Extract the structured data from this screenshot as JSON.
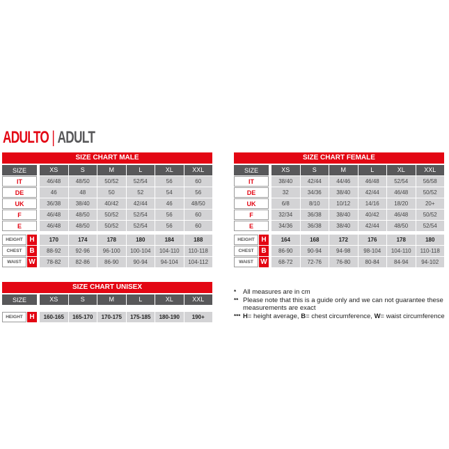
{
  "heading": {
    "main": "ADULTO",
    "divider": "|",
    "sub": "ADULT"
  },
  "sizes": [
    "XS",
    "S",
    "M",
    "L",
    "XL",
    "XXL"
  ],
  "size_label": "SIZE",
  "male": {
    "title": "SIZE CHART MALE",
    "conversions": [
      {
        "label": "IT",
        "values": [
          "46/48",
          "48/50",
          "50/52",
          "52/54",
          "56",
          "60"
        ]
      },
      {
        "label": "DE",
        "values": [
          "46",
          "48",
          "50",
          "52",
          "54",
          "56"
        ]
      },
      {
        "label": "UK",
        "values": [
          "36/38",
          "38/40",
          "40/42",
          "42/44",
          "46",
          "48/50"
        ]
      },
      {
        "label": "F",
        "values": [
          "46/48",
          "48/50",
          "50/52",
          "52/54",
          "56",
          "60"
        ]
      },
      {
        "label": "E",
        "values": [
          "46/48",
          "48/50",
          "50/52",
          "52/54",
          "56",
          "60"
        ]
      }
    ],
    "measures": [
      {
        "label": "HEIGHT",
        "letter": "H",
        "values": [
          "170",
          "174",
          "178",
          "180",
          "184",
          "188"
        ]
      },
      {
        "label": "CHEST",
        "letter": "B",
        "values": [
          "88-92",
          "92-96",
          "96-100",
          "100-104",
          "104-110",
          "110-118"
        ]
      },
      {
        "label": "WAIST",
        "letter": "W",
        "values": [
          "78-82",
          "82-86",
          "86-90",
          "90-94",
          "94-104",
          "104-112"
        ]
      }
    ]
  },
  "female": {
    "title": "SIZE CHART FEMALE",
    "conversions": [
      {
        "label": "IT",
        "values": [
          "38/40",
          "42/44",
          "44/46",
          "46/48",
          "52/54",
          "56/58"
        ]
      },
      {
        "label": "DE",
        "values": [
          "32",
          "34/36",
          "38/40",
          "42/44",
          "46/48",
          "50/52"
        ]
      },
      {
        "label": "UK",
        "values": [
          "6/8",
          "8/10",
          "10/12",
          "14/16",
          "18/20",
          "20+"
        ]
      },
      {
        "label": "F",
        "values": [
          "32/34",
          "36/38",
          "38/40",
          "40/42",
          "46/48",
          "50/52"
        ]
      },
      {
        "label": "E",
        "values": [
          "34/36",
          "36/38",
          "38/40",
          "42/44",
          "48/50",
          "52/54"
        ]
      }
    ],
    "measures": [
      {
        "label": "HEIGHT",
        "letter": "H",
        "values": [
          "164",
          "168",
          "172",
          "176",
          "178",
          "180"
        ]
      },
      {
        "label": "CHEST",
        "letter": "B",
        "values": [
          "86-90",
          "90-94",
          "94-98",
          "98-104",
          "104-110",
          "110-118"
        ]
      },
      {
        "label": "WAIST",
        "letter": "W",
        "values": [
          "68-72",
          "72-76",
          "76-80",
          "80-84",
          "84-94",
          "94-102"
        ]
      }
    ]
  },
  "unisex": {
    "title": "SIZE CHART UNISEX",
    "conversions": [],
    "measures": [
      {
        "label": "HEIGHT",
        "letter": "H",
        "values": [
          "160-165",
          "165-170",
          "170-175",
          "175-185",
          "180-190",
          "190+"
        ]
      }
    ]
  },
  "notes": [
    {
      "marker": "*",
      "text": "All measures are in cm"
    },
    {
      "marker": "**",
      "text": "Please note that this is a guide only and we can not guarantee these measurements are exact"
    },
    {
      "marker": "***",
      "parts": [
        {
          "b": "H",
          "t": "= height average, "
        },
        {
          "b": "B",
          "t": "= chest circumference, "
        },
        {
          "b": "W",
          "t": "= waist circumference"
        }
      ]
    }
  ],
  "colors": {
    "brand_red": "#e30613",
    "header_gray": "#58585a",
    "cell_gray": "#d3d3d5"
  }
}
